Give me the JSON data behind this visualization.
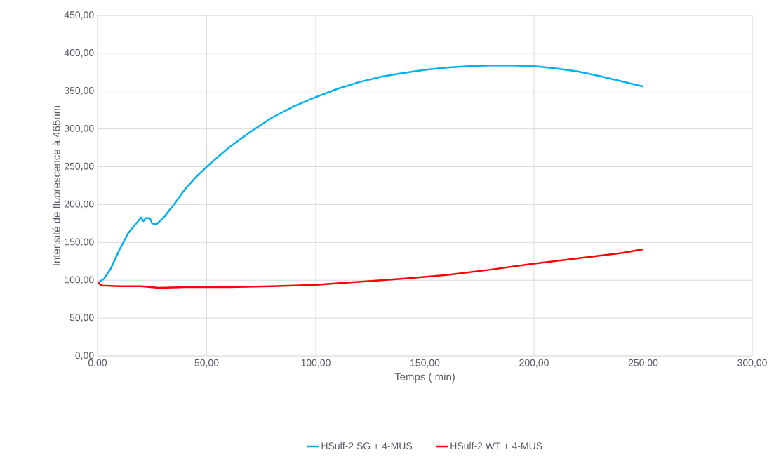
{
  "chart_data": {
    "type": "line",
    "xlabel": "Temps ( min)",
    "ylabel": "Intensité de fluorescence à 465nm",
    "xlim": [
      0,
      300
    ],
    "ylim": [
      0,
      450
    ],
    "xticks": [
      {
        "value": 0,
        "label": "0,00"
      },
      {
        "value": 50,
        "label": "50,00"
      },
      {
        "value": 100,
        "label": "100,00"
      },
      {
        "value": 150,
        "label": "150,00"
      },
      {
        "value": 200,
        "label": "200,00"
      },
      {
        "value": 250,
        "label": "250,00"
      },
      {
        "value": 300,
        "label": "300,00"
      }
    ],
    "yticks": [
      {
        "value": 0,
        "label": "0,00"
      },
      {
        "value": 50,
        "label": "50,00"
      },
      {
        "value": 100,
        "label": "100,00"
      },
      {
        "value": 150,
        "label": "150,00"
      },
      {
        "value": 200,
        "label": "200,00"
      },
      {
        "value": 250,
        "label": "250,00"
      },
      {
        "value": 300,
        "label": "300,00"
      },
      {
        "value": 350,
        "label": "350,00"
      },
      {
        "value": 400,
        "label": "400,00"
      },
      {
        "value": 450,
        "label": "450,00"
      }
    ],
    "grid": true,
    "legend": "bottom",
    "marker": "none",
    "line_style": "solid",
    "series": [
      {
        "name": "HSulf-2 SG + 4-MUS",
        "color": "#00b0f0",
        "x": [
          0,
          3,
          6,
          10,
          14,
          18,
          20,
          21,
          22,
          24,
          25,
          27,
          30,
          35,
          40,
          45,
          50,
          60,
          70,
          80,
          90,
          100,
          110,
          120,
          130,
          140,
          150,
          160,
          170,
          180,
          190,
          200,
          210,
          220,
          230,
          240,
          250
        ],
        "values": [
          96,
          102,
          115,
          140,
          162,
          176,
          183,
          178,
          182,
          182,
          175,
          174,
          182,
          200,
          220,
          236,
          250,
          275,
          296,
          315,
          330,
          342,
          353,
          362,
          369,
          374,
          378,
          381,
          383,
          384,
          384,
          383,
          380,
          376,
          370,
          363,
          356
        ]
      },
      {
        "name": "HSulf-2 WT + 4-MUS",
        "color": "#ff0000",
        "x": [
          0,
          2,
          10,
          20,
          28,
          40,
          60,
          80,
          100,
          120,
          140,
          160,
          180,
          200,
          220,
          240,
          250
        ],
        "values": [
          97,
          93,
          92,
          92,
          90,
          91,
          91,
          92,
          94,
          98,
          102,
          107,
          114,
          122,
          129,
          136,
          141
        ]
      }
    ]
  }
}
